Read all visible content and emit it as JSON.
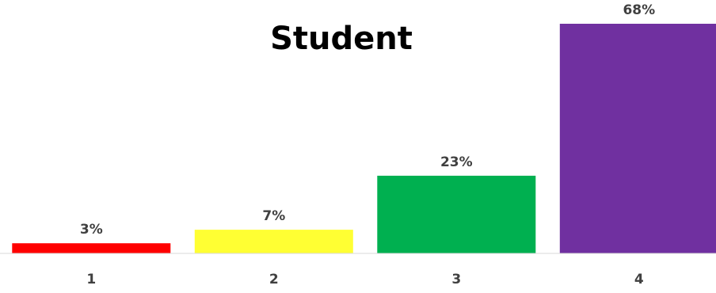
{
  "chart_data": {
    "type": "bar",
    "title": "Student",
    "categories": [
      "1",
      "2",
      "3",
      "4"
    ],
    "values": [
      3,
      7,
      23,
      68
    ],
    "data_labels": [
      "3%",
      "7%",
      "23%",
      "68%"
    ],
    "value_unit": "%",
    "ylim": [
      0,
      70
    ],
    "grid": false,
    "legend": "none",
    "colors": [
      "#ff0000",
      "#ffff33",
      "#00b050",
      "#7030a0"
    ],
    "xlabel": "",
    "ylabel": ""
  }
}
